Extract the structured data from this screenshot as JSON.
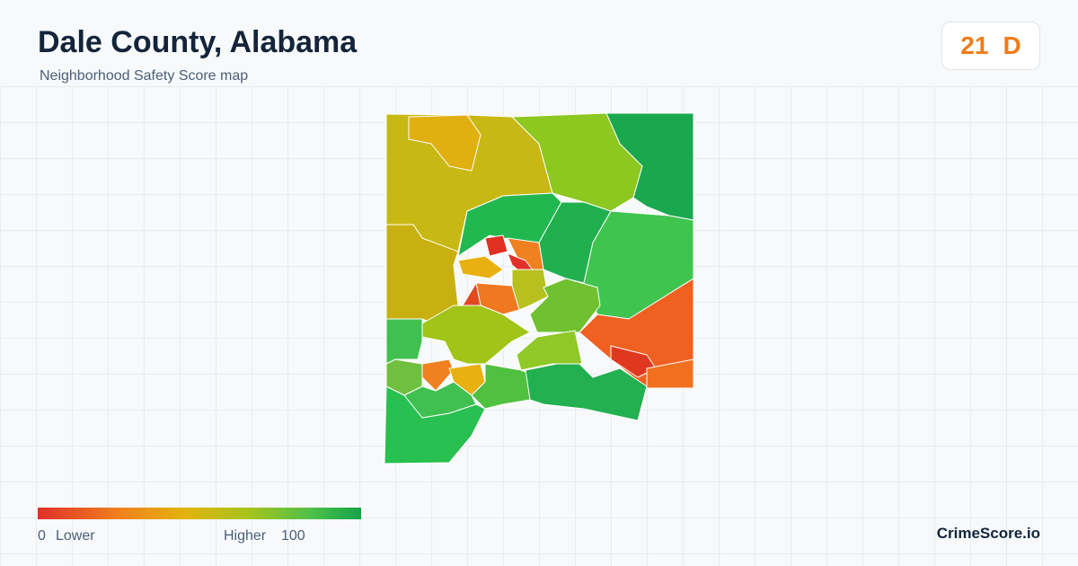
{
  "header": {
    "title": "Dale County, Alabama",
    "subtitle": "Neighborhood Safety Score map"
  },
  "score": {
    "value": 21,
    "grade": "D"
  },
  "legend": {
    "min": 0,
    "min_label": "Lower",
    "max_label": "Higher",
    "max": 100
  },
  "brand": "CrimeScore.io"
}
